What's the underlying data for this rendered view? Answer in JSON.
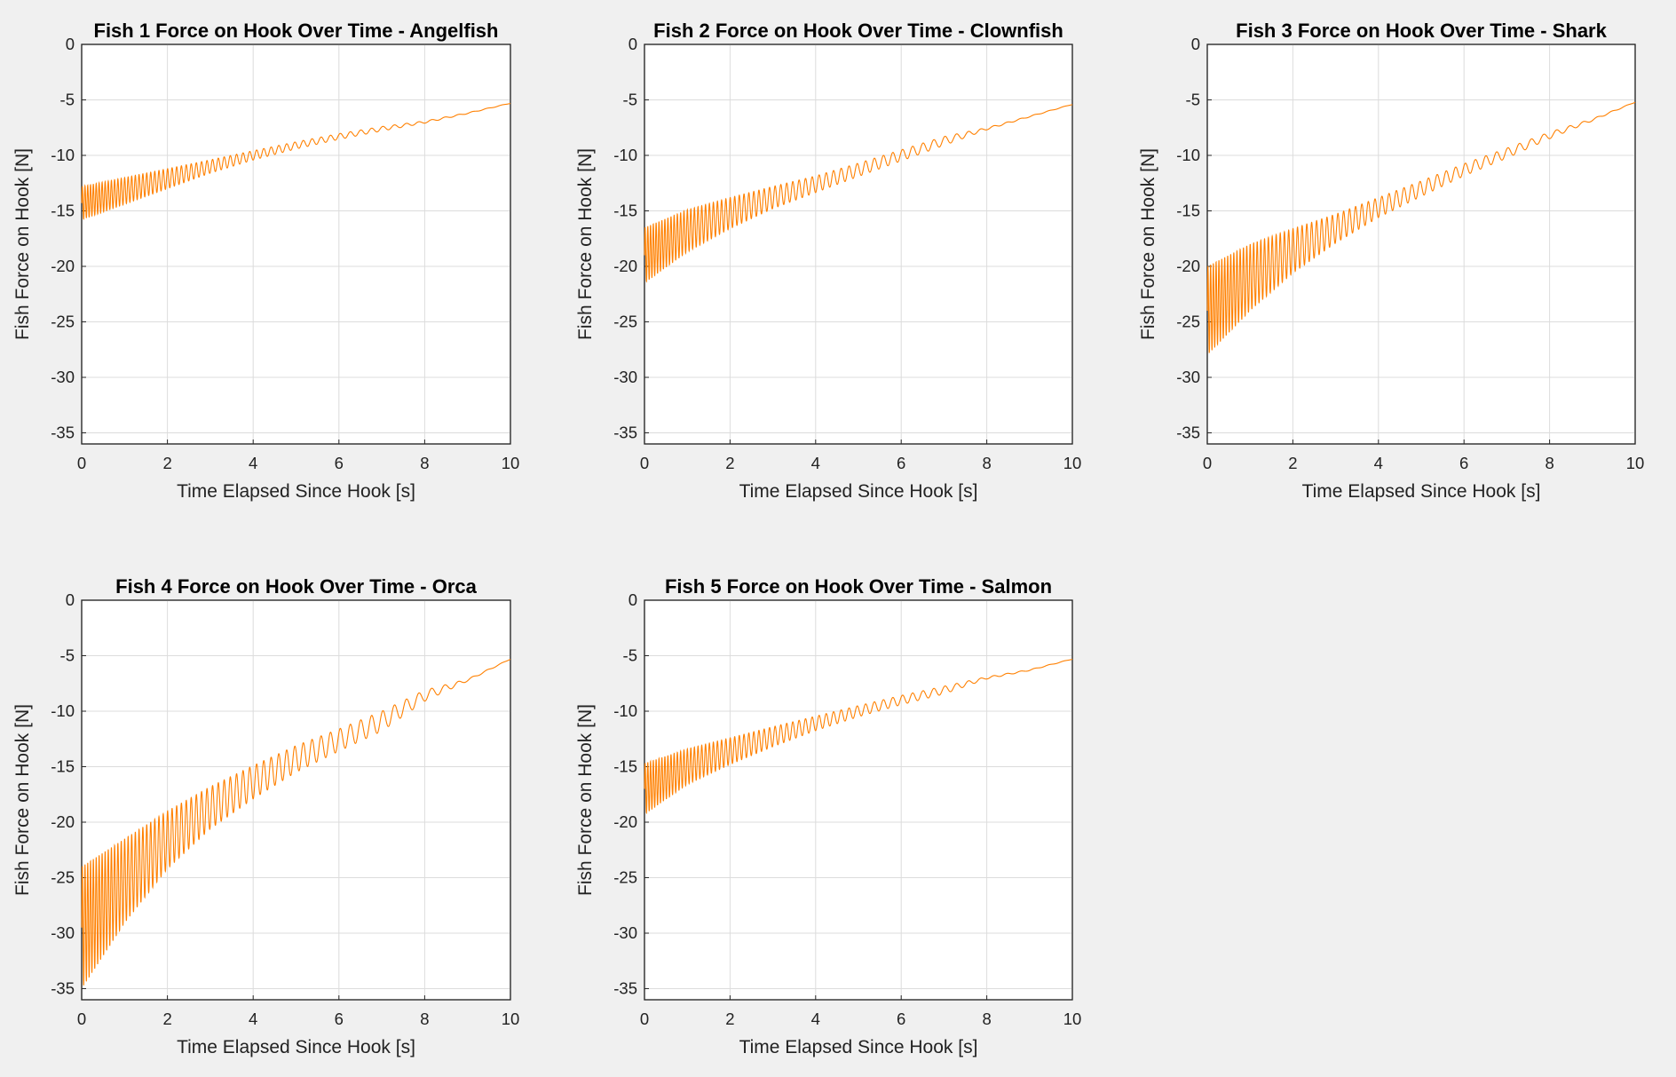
{
  "figure": {
    "background": "#f0f0f0",
    "line_color": "#ff8000"
  },
  "chart_data": [
    {
      "type": "line",
      "title": "Fish 1 Force on Hook Over Time - Angelfish",
      "xlabel": "Time Elapsed Since Hook [s]",
      "ylabel": "Fish Force on Hook [N]",
      "xlim": [
        0,
        10
      ],
      "ylim": [
        -36,
        0
      ],
      "xticks": [
        "0",
        "2",
        "4",
        "6",
        "8",
        "10"
      ],
      "yticks": [
        "0",
        "-5",
        "-10",
        "-15",
        "-20",
        "-25",
        "-30",
        "-35"
      ],
      "grid": true,
      "series": [
        {
          "x": [
            0,
            1,
            2,
            3,
            4,
            5,
            6,
            7,
            8,
            9,
            10
          ],
          "y": [
            -14.3,
            -13.2,
            -12.1,
            -11.0,
            -10.0,
            -9.1,
            -8.3,
            -7.6,
            -7.0,
            -6.2,
            -5.3
          ],
          "oscillation_amplitude": [
            1.5,
            1.2,
            0.9,
            0.6,
            0.42,
            0.32,
            0.26,
            0.2,
            0.1,
            0.05,
            0.02
          ]
        }
      ]
    },
    {
      "type": "line",
      "title": "Fish 2 Force on Hook Over Time - Clownfish",
      "xlabel": "Time Elapsed Since Hook [s]",
      "ylabel": "Fish Force on Hook [N]",
      "xlim": [
        0,
        10
      ],
      "ylim": [
        -36,
        0
      ],
      "xticks": [
        "0",
        "2",
        "4",
        "6",
        "8",
        "10"
      ],
      "yticks": [
        "0",
        "-5",
        "-10",
        "-15",
        "-20",
        "-25",
        "-30",
        "-35"
      ],
      "grid": true,
      "series": [
        {
          "x": [
            0,
            1,
            2,
            3,
            4,
            5,
            6,
            7,
            8,
            9,
            10
          ],
          "y": [
            -19.0,
            -16.8,
            -15.2,
            -13.8,
            -12.6,
            -11.3,
            -10.0,
            -8.7,
            -7.6,
            -6.5,
            -5.4
          ],
          "oscillation_amplitude": [
            2.5,
            1.9,
            1.4,
            1.0,
            0.75,
            0.6,
            0.5,
            0.4,
            0.1,
            0.05,
            0.02
          ]
        }
      ]
    },
    {
      "type": "line",
      "title": "Fish 3 Force on Hook Over Time - Shark",
      "xlabel": "Time Elapsed Since Hook [s]",
      "ylabel": "Fish Force on Hook [N]",
      "xlim": [
        0,
        10
      ],
      "ylim": [
        -36,
        0
      ],
      "xticks": [
        "0",
        "2",
        "4",
        "6",
        "8",
        "10"
      ],
      "yticks": [
        "0",
        "-5",
        "-10",
        "-15",
        "-20",
        "-25",
        "-30",
        "-35"
      ],
      "grid": true,
      "series": [
        {
          "x": [
            0,
            1,
            2,
            3,
            4,
            5,
            6,
            7,
            8,
            9,
            10
          ],
          "y": [
            -24.0,
            -21.0,
            -18.6,
            -16.6,
            -14.7,
            -13.0,
            -11.3,
            -9.8,
            -8.2,
            -6.8,
            -5.2
          ],
          "oscillation_amplitude": [
            4.0,
            3.0,
            2.0,
            1.3,
            0.9,
            0.7,
            0.55,
            0.45,
            0.3,
            0.1,
            0.02
          ]
        }
      ]
    },
    {
      "type": "line",
      "title": "Fish 4 Force on Hook Over Time - Orca",
      "xlabel": "Time Elapsed Since Hook [s]",
      "ylabel": "Fish Force on Hook [N]",
      "xlim": [
        0,
        10
      ],
      "ylim": [
        -36,
        0
      ],
      "xticks": [
        "0",
        "2",
        "4",
        "6",
        "8",
        "10"
      ],
      "yticks": [
        "0",
        "-5",
        "-10",
        "-15",
        "-20",
        "-25",
        "-30",
        "-35"
      ],
      "grid": true,
      "series": [
        {
          "x": [
            0,
            1,
            2,
            3,
            4,
            5,
            6,
            7,
            8,
            9,
            10
          ],
          "y": [
            -29.5,
            -25.3,
            -21.6,
            -18.7,
            -16.4,
            -14.3,
            -12.6,
            -10.9,
            -8.6,
            -7.2,
            -5.3
          ],
          "oscillation_amplitude": [
            5.5,
            3.8,
            2.6,
            1.9,
            1.5,
            1.2,
            1.0,
            0.9,
            0.5,
            0.1,
            0.02
          ]
        }
      ]
    },
    {
      "type": "line",
      "title": "Fish 5 Force on Hook Over Time - Salmon",
      "xlabel": "Time Elapsed Since Hook [s]",
      "ylabel": "Fish Force on Hook [N]",
      "xlim": [
        0,
        10
      ],
      "ylim": [
        -36,
        0
      ],
      "xticks": [
        "0",
        "2",
        "4",
        "6",
        "8",
        "10"
      ],
      "yticks": [
        "0",
        "-5",
        "-10",
        "-15",
        "-20",
        "-25",
        "-30",
        "-35"
      ],
      "grid": true,
      "series": [
        {
          "x": [
            0,
            1,
            2,
            3,
            4,
            5,
            6,
            7,
            8,
            9,
            10
          ],
          "y": [
            -17.0,
            -15.0,
            -13.6,
            -12.3,
            -11.1,
            -10.0,
            -9.0,
            -8.1,
            -7.0,
            -6.3,
            -5.3
          ],
          "oscillation_amplitude": [
            2.3,
            1.6,
            1.2,
            0.9,
            0.65,
            0.5,
            0.42,
            0.35,
            0.1,
            0.05,
            0.02
          ]
        }
      ]
    }
  ]
}
